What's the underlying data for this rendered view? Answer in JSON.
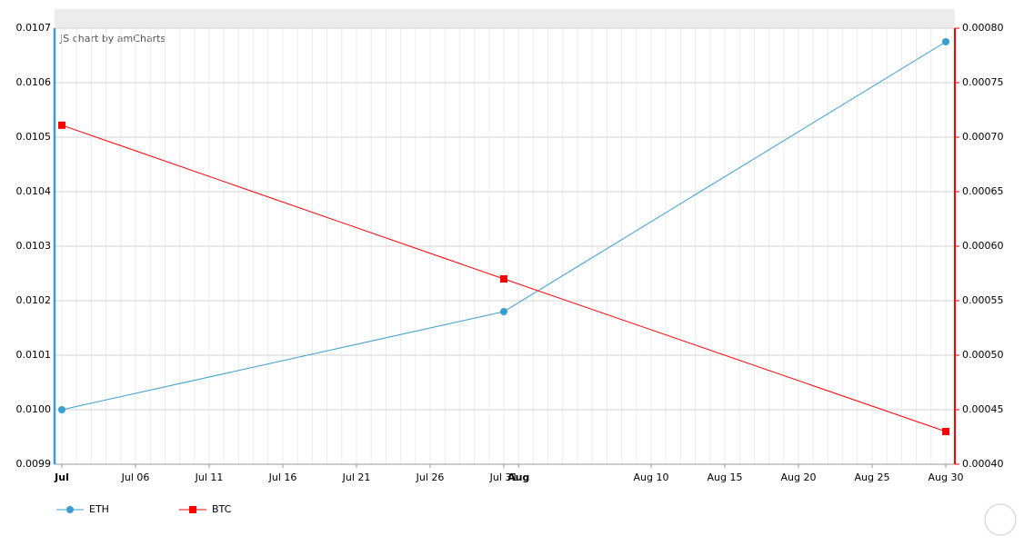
{
  "chart_data": {
    "type": "line",
    "credit": "JS chart by amCharts",
    "x": [
      "Jul 01",
      "Jul 31",
      "Aug 30"
    ],
    "xlim": [
      "Jul 01",
      "Aug 30"
    ],
    "xticks": [
      {
        "value": "Jul 01",
        "label": "Jul"
      },
      "Jul 06",
      "Jul 11",
      "Jul 16",
      "Jul 21",
      "Jul 26",
      "Jul 31",
      {
        "value": "Aug 01",
        "label": "Aug"
      },
      "Aug 10",
      "Aug 15",
      "Aug 20",
      "Aug 25",
      "Aug 30"
    ],
    "ylim": [
      0.0099,
      0.0107
    ],
    "yticks": [
      0.0099,
      {
        "value": 0.01,
        "label": "0.0100"
      },
      0.0101,
      0.0102,
      0.0103,
      0.0104,
      0.0105,
      0.0106,
      0.0107
    ],
    "y2lim": [
      0.0004,
      0.0008
    ],
    "y2ticks": [
      {
        "value": 0.0004,
        "label": "0.00040"
      },
      {
        "value": 0.00045,
        "label": "0.00045"
      },
      {
        "value": 0.0005,
        "label": "0.00050"
      },
      {
        "value": 0.00055,
        "label": "0.00055"
      },
      {
        "value": 0.0006,
        "label": "0.00060"
      },
      {
        "value": 0.00065,
        "label": "0.00065"
      },
      {
        "value": 0.0007,
        "label": "0.00070"
      },
      {
        "value": 0.00075,
        "label": "0.00075"
      },
      {
        "value": 0.0008,
        "label": "0.00080"
      }
    ],
    "grid": true,
    "legend": "bottom-left",
    "series": [
      {
        "name": "ETH",
        "color": "#3a9fd0",
        "marker": "circle",
        "values": [
          0.01,
          0.01018,
          0.010675
        ]
      },
      {
        "name": "BTC",
        "color": "#ff0000",
        "marker": "square",
        "axis": "y2",
        "values": [
          0.000711,
          0.00057,
          0.00043
        ]
      }
    ]
  }
}
